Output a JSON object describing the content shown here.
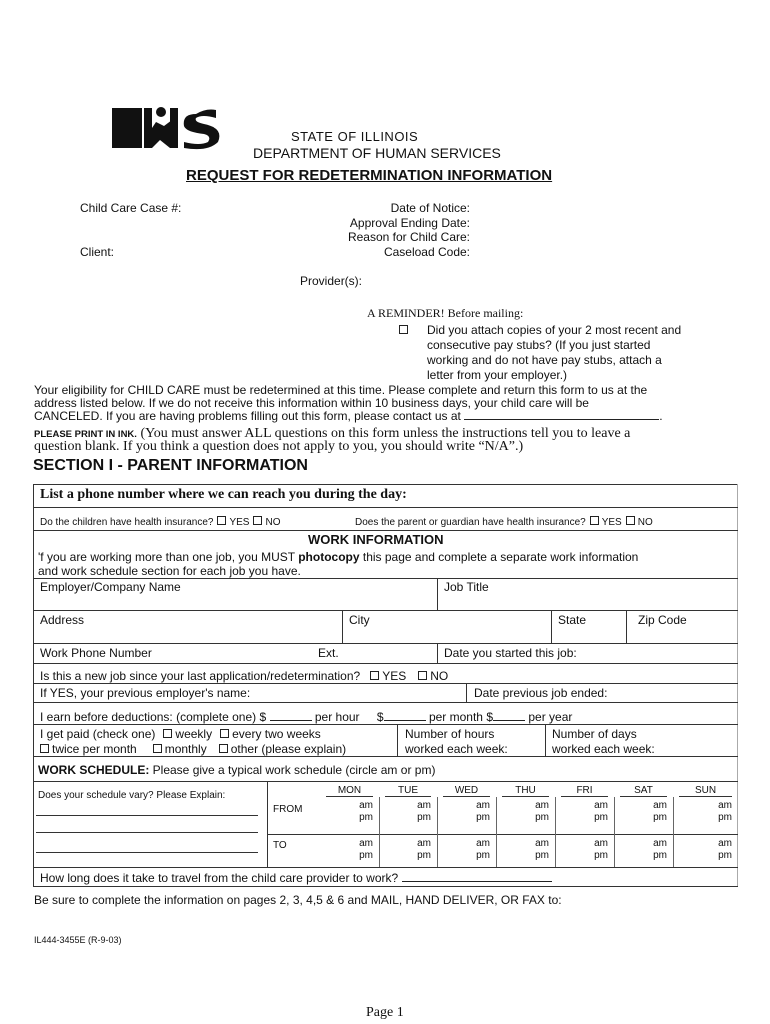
{
  "header": {
    "logo_text": "DHS",
    "state": "STATE OF ILLINOIS",
    "department": "DEPARTMENT OF HUMAN SERVICES",
    "title": "REQUEST FOR REDETERMINATION INFORMATION"
  },
  "case_info": {
    "case_number_label": "Child Care Case #:",
    "client_label": "Client:",
    "date_of_notice_label": "Date of Notice:",
    "approval_ending_label": "Approval Ending Date:",
    "reason_label": "Reason for Child Care:",
    "caseload_label": "Caseload Code:",
    "providers_label": "Provider(s):"
  },
  "reminder": {
    "heading": "A REMINDER! Before mailing:",
    "lines": [
      "Did you attach copies of your 2 most recent and",
      "consecutive pay stubs? (If you just started",
      "working and do not have pay stubs,  attach a",
      "letter from your employer.)"
    ]
  },
  "intro": {
    "lines": [
      "Your eligibility for CHILD CARE must be redetermined at this time.  Please complete and return this form to us at the",
      "address listed below.    If we do not receive this information within 10 business days, your child care will be",
      "CANCELED.  If you are having problems filling out this form, please contact us at"
    ],
    "print_label": "PLEASE PRINT IN INK.",
    "print_line1": "(You must answer ALL questions on this form unless the instructions tell you to leave a",
    "print_line2": "question blank. If you think a question does not apply to you, you should write “N/A”.)"
  },
  "section1": {
    "title": "SECTION I - PARENT INFORMATION",
    "phone_label": "List a phone number where we can reach you during the day:",
    "children_insurance": "Do the children have health insurance?",
    "parent_insurance": "Does the parent or guardian have health insurance?",
    "yes": "YES",
    "no": "NO"
  },
  "work": {
    "heading": "WORK INFORMATION",
    "note_line1_a": "'f you are working more than one job, you MUST ",
    "note_line1_b": "photocopy",
    "note_line1_c": " this page and complete a separate work information",
    "note_line2": "and work schedule section for each job you have.",
    "employer": "Employer/Company Name",
    "job_title": "Job Title",
    "address": "Address",
    "city": "City",
    "state": "State",
    "zip": "Zip Code",
    "work_phone": "Work Phone Number",
    "ext": "Ext.",
    "date_started": "Date you started this job:",
    "new_job_q": "Is this a new job since your last application/redetermination?",
    "prev_employer": "If YES, your previous employer's name:",
    "prev_ended": "Date previous job ended:",
    "earn_label": "I earn before deductions: (complete one)",
    "per_hour": "per hour",
    "per_month": "per month",
    "per_year": "per year",
    "dollar": "$",
    "paid_label": "I get paid (check one)",
    "weekly": "weekly",
    "every_two_weeks": "every two weeks",
    "twice_per_month": "twice per month",
    "monthly": "monthly",
    "other": "other (please explain)",
    "hours_line1": "Number of hours",
    "hours_line2": "worked each week:",
    "days_line1": "Number of days",
    "days_line2": "worked each week:"
  },
  "schedule": {
    "label_bold": "WORK SCHEDULE:",
    "label_rest": " Please give a typical work schedule (circle am or pm)",
    "vary": "Does your schedule vary?  Please Explain:",
    "from": "FROM",
    "to": "TO",
    "days": [
      "MON",
      "TUE",
      "WED",
      "THU",
      "FRI",
      "SAT",
      "SUN"
    ],
    "am": "am",
    "pm": "pm",
    "travel": "How long does it take to travel from the child care provider to work?"
  },
  "footer": {
    "mail_note": "Be sure to complete the information on pages 2, 3, 4,5 & 6 and MAIL, HAND DELIVER, OR FAX to:",
    "form_number": "IL444-3455E (R-9-03)",
    "page": "Page 1"
  }
}
